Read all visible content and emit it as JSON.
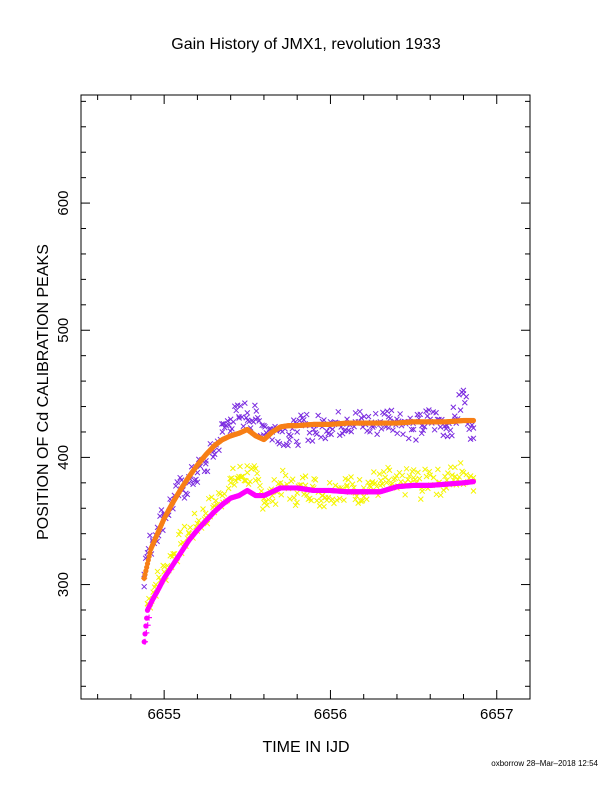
{
  "chart_data": {
    "type": "scatter",
    "title": "Gain History of JMX1, revolution 1933",
    "xlabel": "TIME IN IJD",
    "ylabel": "POSITION OF Cd CALIBRATION PEAKS",
    "xlim": [
      6654.5,
      6657.2
    ],
    "ylim": [
      210,
      685
    ],
    "x_ticks": [
      "6655",
      "6656",
      "6657"
    ],
    "x_tick_values": [
      6655,
      6656,
      6657
    ],
    "y_ticks": [
      "300",
      "400",
      "500",
      "600"
    ],
    "y_tick_values": [
      300,
      400,
      500,
      600
    ],
    "grid": false,
    "x_range": [
      6654.88,
      6656.86
    ],
    "series": [
      {
        "marker": "x",
        "color": "#7a2be0",
        "x": [
          6654.88,
          6654.9,
          6654.93,
          6654.96,
          6655.0,
          6655.05,
          6655.1,
          6655.15,
          6655.2,
          6655.25,
          6655.3,
          6655.35,
          6655.4,
          6655.45,
          6655.5,
          6655.55,
          6655.6,
          6655.65,
          6655.7,
          6655.75,
          6655.8,
          6655.85,
          6655.9,
          6655.95,
          6656.0,
          6656.05,
          6656.1,
          6656.15,
          6656.2,
          6656.25,
          6656.3,
          6656.35,
          6656.4,
          6656.45,
          6656.5,
          6656.55,
          6656.6,
          6656.65,
          6656.7,
          6656.75,
          6656.8,
          6656.86
        ],
        "y": [
          308,
          325,
          335,
          345,
          355,
          365,
          375,
          380,
          388,
          395,
          405,
          420,
          430,
          432,
          435,
          430,
          425,
          420,
          422,
          418,
          420,
          425,
          422,
          424,
          428,
          426,
          430,
          428,
          427,
          425,
          428,
          432,
          430,
          428,
          422,
          425,
          430,
          428,
          425,
          430,
          450,
          415
        ]
      },
      {
        "marker": "line",
        "color": "#f77f16",
        "x": [
          6654.88,
          6654.92,
          6654.96,
          6655.0,
          6655.05,
          6655.1,
          6655.15,
          6655.2,
          6655.25,
          6655.3,
          6655.35,
          6655.4,
          6655.45,
          6655.5,
          6655.55,
          6655.6,
          6655.65,
          6655.7,
          6655.75,
          6655.8,
          6655.9,
          6656.0,
          6656.1,
          6656.2,
          6656.3,
          6656.4,
          6656.5,
          6656.6,
          6656.7,
          6656.8,
          6656.86
        ],
        "y": [
          305,
          328,
          340,
          352,
          364,
          375,
          385,
          394,
          402,
          409,
          414,
          417,
          419,
          422,
          417,
          414,
          420,
          424,
          425,
          425,
          426,
          426,
          427,
          427,
          427,
          427,
          428,
          428,
          428,
          429,
          429
        ]
      },
      {
        "marker": "x",
        "color": "#f5f500",
        "x": [
          6654.9,
          6654.95,
          6655.0,
          6655.05,
          6655.1,
          6655.15,
          6655.2,
          6655.25,
          6655.3,
          6655.35,
          6655.4,
          6655.45,
          6655.5,
          6655.55,
          6655.6,
          6655.65,
          6655.7,
          6655.75,
          6655.8,
          6655.85,
          6655.9,
          6655.95,
          6656.0,
          6656.05,
          6656.1,
          6656.15,
          6656.2,
          6656.25,
          6656.3,
          6656.35,
          6656.4,
          6656.45,
          6656.5,
          6656.55,
          6656.6,
          6656.65,
          6656.7,
          6656.75,
          6656.8,
          6656.86
        ],
        "y": [
          285,
          300,
          310,
          322,
          332,
          340,
          348,
          356,
          362,
          370,
          380,
          385,
          388,
          382,
          368,
          370,
          380,
          376,
          372,
          378,
          376,
          370,
          374,
          376,
          378,
          372,
          376,
          380,
          378,
          382,
          376,
          380,
          384,
          376,
          386,
          380,
          382,
          385,
          388,
          384
        ]
      },
      {
        "marker": "line",
        "color": "#ff00ff",
        "x": [
          6654.88,
          6654.9,
          6654.93,
          6654.96,
          6655.0,
          6655.05,
          6655.1,
          6655.15,
          6655.2,
          6655.25,
          6655.3,
          6655.35,
          6655.4,
          6655.45,
          6655.5,
          6655.55,
          6655.6,
          6655.65,
          6655.7,
          6655.75,
          6655.8,
          6655.9,
          6656.0,
          6656.1,
          6656.2,
          6656.3,
          6656.4,
          6656.5,
          6656.6,
          6656.7,
          6656.8,
          6656.86
        ],
        "y": [
          255,
          280,
          288,
          295,
          305,
          315,
          325,
          335,
          343,
          350,
          357,
          363,
          368,
          370,
          374,
          370,
          370,
          373,
          376,
          376,
          376,
          374,
          374,
          373,
          373,
          373,
          377,
          378,
          378,
          379,
          380,
          381
        ]
      }
    ]
  },
  "credit": "oxborrow 28–Mar–2018 12:54"
}
